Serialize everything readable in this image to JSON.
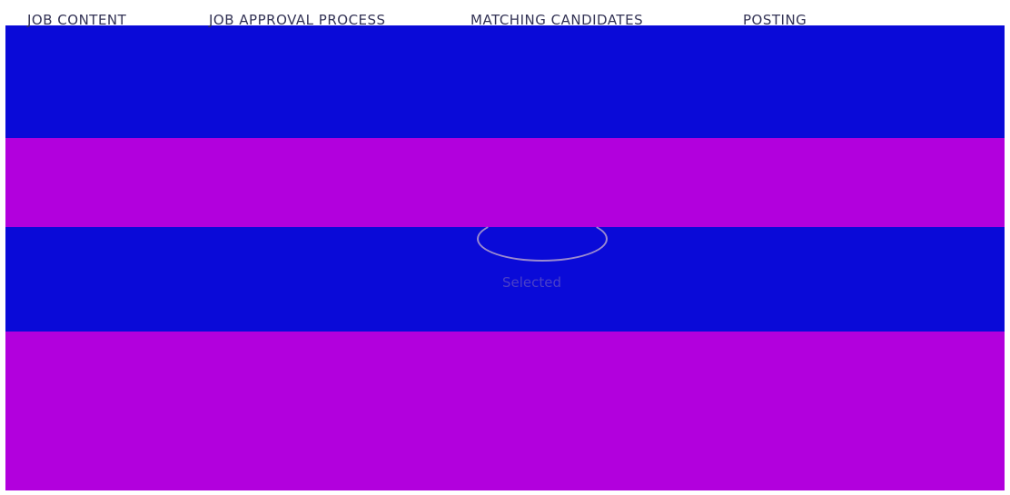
{
  "tabs": [
    "JOB CONTENT",
    "JOB APPROVAL PROCESS",
    "MATCHING CANDIDATES",
    "POSTING"
  ],
  "status": "Selected"
}
